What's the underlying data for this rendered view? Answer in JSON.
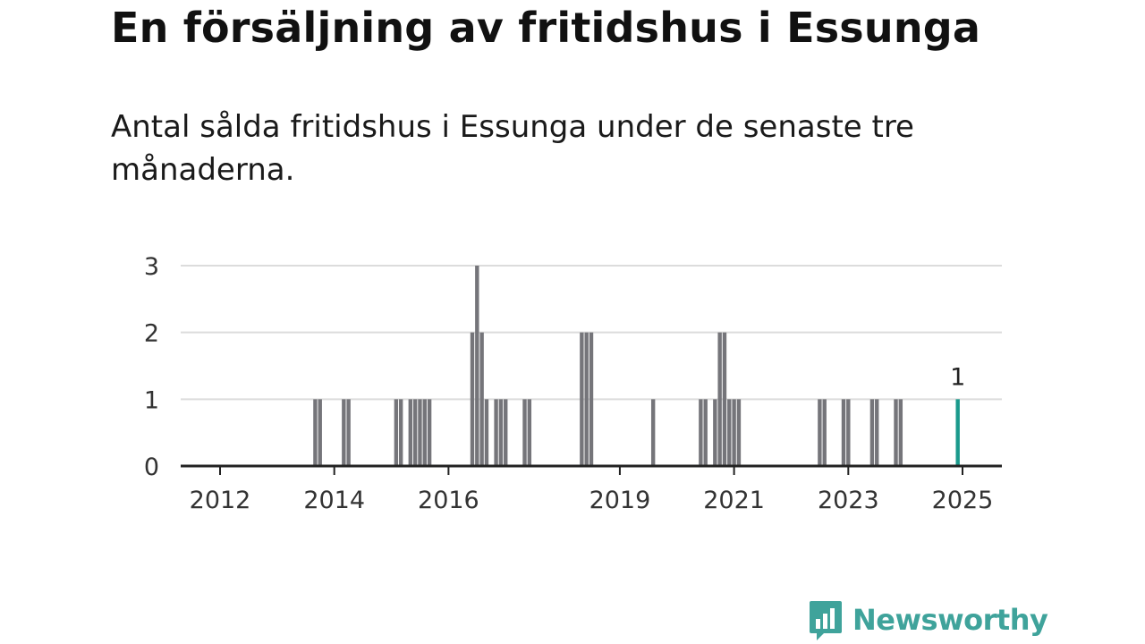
{
  "header": {
    "title": "En försäljning av fritidshus i Essunga",
    "subtitle": "Antal sålda fritidshus i Essunga under de senaste tre månaderna."
  },
  "logo": {
    "text": "Newsworthy",
    "icon": "newsworthy-chart-bubble-icon",
    "color": "#3fa39b"
  },
  "colors": {
    "bar": "#75757a",
    "highlight": "#1a9a8c",
    "grid": "#dcdcdc",
    "axis": "#222222"
  },
  "chart_data": {
    "type": "bar",
    "title": "",
    "xlabel": "",
    "ylabel": "",
    "ylim": [
      0,
      3
    ],
    "yticks": [
      "0",
      "1",
      "2",
      "3"
    ],
    "xticks": [
      "2012",
      "2014",
      "2016",
      "2019",
      "2021",
      "2023",
      "2025"
    ],
    "grid": true,
    "series": [
      {
        "x": [
          "2013-09",
          "2013-10",
          "2014-03",
          "2014-04",
          "2015-02",
          "2015-03",
          "2015-05",
          "2015-06",
          "2015-07",
          "2015-08",
          "2015-09",
          "2016-06",
          "2016-07",
          "2016-08",
          "2016-09",
          "2016-11",
          "2016-12",
          "2017-01",
          "2017-05",
          "2017-06",
          "2018-05",
          "2018-06",
          "2018-07",
          "2019-08",
          "2020-06",
          "2020-07",
          "2020-09",
          "2020-10",
          "2020-11",
          "2020-12",
          "2021-01",
          "2021-02",
          "2022-07",
          "2022-08",
          "2022-12",
          "2023-01",
          "2023-06",
          "2023-07",
          "2023-11",
          "2023-12",
          "2024-12"
        ],
        "values": [
          1,
          1,
          1,
          1,
          1,
          1,
          1,
          1,
          1,
          1,
          1,
          2,
          3,
          2,
          1,
          1,
          1,
          1,
          1,
          1,
          2,
          2,
          2,
          1,
          1,
          1,
          1,
          2,
          2,
          1,
          1,
          1,
          1,
          1,
          1,
          1,
          1,
          1,
          1,
          1,
          1
        ]
      }
    ],
    "highlight": {
      "x": "2024-12",
      "value": 1,
      "label": "1"
    }
  }
}
